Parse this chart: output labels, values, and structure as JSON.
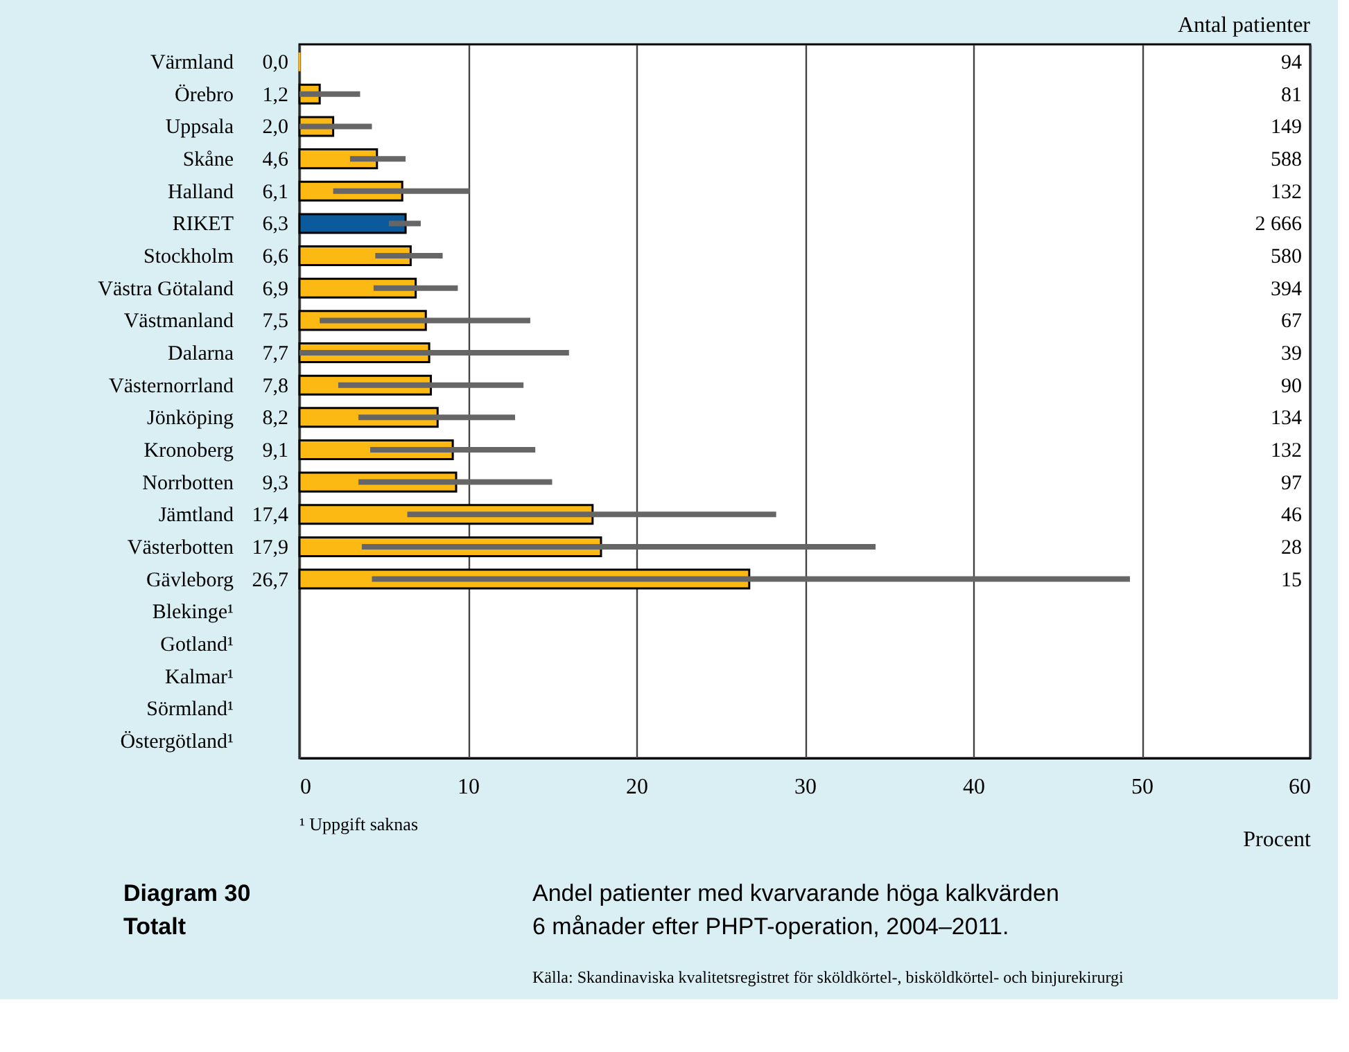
{
  "chart_data": {
    "type": "bar",
    "orientation": "horizontal",
    "title": "Andel patienter med kvarvarande höga kalkvärden\n6 månader efter PHPT-operation, 2004–2011.",
    "subtitle": "Diagram 30\nTotalt",
    "xlabel": "Procent",
    "y2label": "Antal patienter",
    "categories": [
      "Värmland",
      "Örebro",
      "Uppsala",
      "Skåne",
      "Halland",
      "RIKET",
      "Stockholm",
      "Västra Götaland",
      "Västmanland",
      "Dalarna",
      "Västernorrland",
      "Jönköping",
      "Kronoberg",
      "Norrbotten",
      "Jämtland",
      "Västerbotten",
      "Gävleborg",
      "Blekinge¹",
      "Gotland¹",
      "Kalmar¹",
      "Sörmland¹",
      "Östergötland¹"
    ],
    "values": [
      0.0,
      1.2,
      2.0,
      4.6,
      6.1,
      6.3,
      6.6,
      6.9,
      7.5,
      7.7,
      7.8,
      8.2,
      9.1,
      9.3,
      17.4,
      17.9,
      26.7,
      null,
      null,
      null,
      null,
      null
    ],
    "value_labels": [
      "0,0",
      "1,2",
      "2,0",
      "4,6",
      "6,1",
      "6,3",
      "6,6",
      "6,9",
      "7,5",
      "7,7",
      "7,8",
      "8,2",
      "9,1",
      "9,3",
      "17,4",
      "17,9",
      "26,7",
      null,
      null,
      null,
      null,
      null
    ],
    "errors": [
      null,
      [
        0,
        3.6
      ],
      [
        0,
        4.3
      ],
      [
        3.0,
        6.3
      ],
      [
        2.0,
        10.1
      ],
      [
        5.3,
        7.2
      ],
      [
        4.5,
        8.5
      ],
      [
        4.4,
        9.4
      ],
      [
        1.2,
        13.7
      ],
      [
        0,
        16.0
      ],
      [
        2.3,
        13.3
      ],
      [
        3.5,
        12.8
      ],
      [
        4.2,
        14.0
      ],
      [
        3.5,
        15.0
      ],
      [
        6.4,
        28.3
      ],
      [
        3.7,
        34.2
      ],
      [
        4.3,
        49.3
      ],
      null,
      null,
      null,
      null,
      null
    ],
    "colors": [
      "#fdb913",
      "#fdb913",
      "#fdb913",
      "#fdb913",
      "#fdb913",
      "#0a5a9c",
      "#fdb913",
      "#fdb913",
      "#fdb913",
      "#fdb913",
      "#fdb913",
      "#fdb913",
      "#fdb913",
      "#fdb913",
      "#fdb913",
      "#fdb913",
      "#fdb913",
      "#fdb913",
      "#fdb913",
      "#fdb913",
      "#fdb913",
      "#fdb913"
    ],
    "y2_categories": [
      "94",
      "81",
      "149",
      "588",
      "132",
      "2 666",
      "580",
      "394",
      "67",
      "39",
      "90",
      "134",
      "132",
      "97",
      "46",
      "28",
      "15",
      null,
      null,
      null,
      null,
      null
    ],
    "xlim": [
      0,
      60
    ],
    "xticks": [
      0,
      10,
      20,
      30,
      40,
      50,
      60
    ],
    "grid": "x",
    "annotations": [
      "¹ Uppgift saknas",
      "Källa: Skandinaviska kvalitetsregistret för sköldkörtel-, bisköldkörtel- och binjurekirurgi"
    ]
  }
}
